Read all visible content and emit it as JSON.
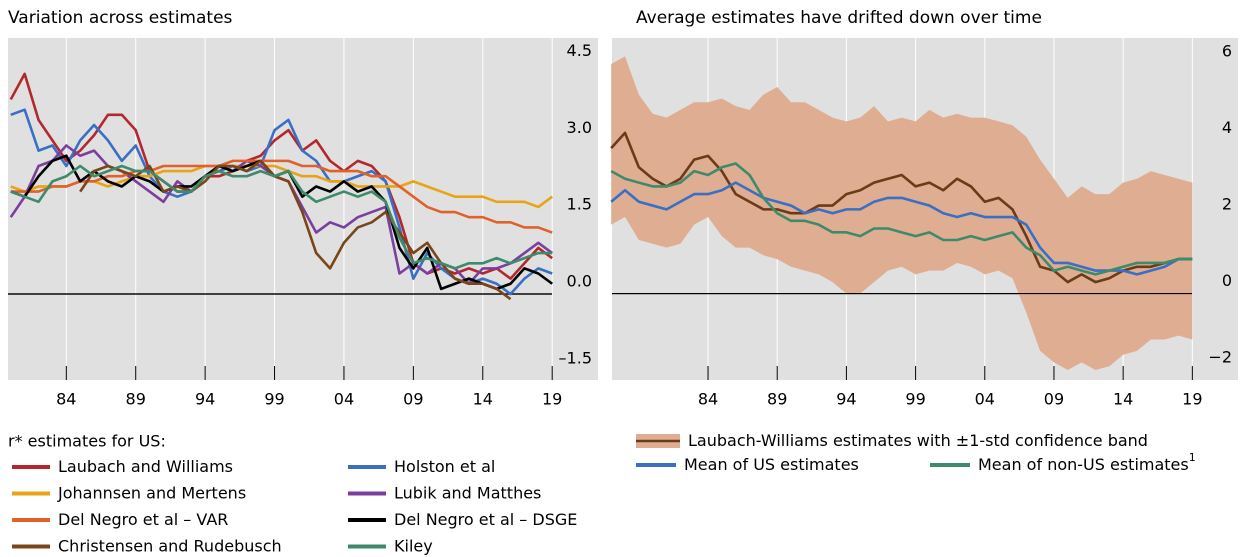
{
  "chart_data": [
    {
      "type": "line",
      "title": "Variation across estimates",
      "legend_title": "r* estimates for US:",
      "x": [
        1980,
        1981,
        1982,
        1983,
        1984,
        1985,
        1986,
        1987,
        1988,
        1989,
        1990,
        1991,
        1992,
        1993,
        1994,
        1995,
        1996,
        1997,
        1998,
        1999,
        2000,
        2001,
        2002,
        2003,
        2004,
        2005,
        2006,
        2007,
        2008,
        2009,
        2010,
        2011,
        2012,
        2013,
        2014,
        2015,
        2016,
        2017,
        2018,
        2019
      ],
      "xlim": [
        1979.8,
        2022.3
      ],
      "ylim": [
        -1.68,
        5.0
      ],
      "xticks": [
        {
          "value": 1984,
          "label": "84"
        },
        {
          "value": 1989,
          "label": "89"
        },
        {
          "value": 1994,
          "label": "94"
        },
        {
          "value": 1999,
          "label": "99"
        },
        {
          "value": 2004,
          "label": "04"
        },
        {
          "value": 2009,
          "label": "09"
        },
        {
          "value": 2014,
          "label": "14"
        },
        {
          "value": 2019,
          "label": "19"
        }
      ],
      "yticks": [
        {
          "value": -1.5,
          "label": "–1.5"
        },
        {
          "value": 0,
          "label": "0.0"
        },
        {
          "value": 1.5,
          "label": "1.5"
        },
        {
          "value": 3,
          "label": "3.0"
        },
        4.5
      ],
      "grid": "x",
      "series": [
        {
          "name": "Laubach and Williams",
          "color": "#b2282e",
          "values": [
            3.8,
            4.3,
            3.4,
            3.0,
            2.6,
            2.8,
            3.1,
            3.5,
            3.5,
            3.2,
            2.4,
            2.2,
            2.0,
            2.0,
            2.3,
            2.3,
            2.4,
            2.6,
            2.7,
            3.0,
            3.2,
            2.8,
            3.0,
            2.6,
            2.4,
            2.6,
            2.5,
            2.2,
            1.5,
            0.6,
            0.4,
            0.5,
            0.4,
            0.5,
            0.4,
            0.5,
            0.3,
            0.6,
            0.9,
            0.7
          ]
        },
        {
          "name": "Holston et al",
          "color": "#3a6fc4",
          "values": [
            3.5,
            3.6,
            2.8,
            2.9,
            2.5,
            3.0,
            3.3,
            3.0,
            2.6,
            2.9,
            2.3,
            2.0,
            1.9,
            2.0,
            2.3,
            2.4,
            2.5,
            2.4,
            2.5,
            3.2,
            3.4,
            2.8,
            2.6,
            2.2,
            2.2,
            2.3,
            2.4,
            2.2,
            1.3,
            0.3,
            0.8,
            0.5,
            0.3,
            0.2,
            0.3,
            0.2,
            0.0,
            0.3,
            0.5,
            0.4
          ]
        },
        {
          "name": "Johannsen and Mertens",
          "color": "#e8a417",
          "values": [
            2.1,
            2.0,
            2.1,
            2.1,
            2.1,
            2.2,
            2.2,
            2.1,
            2.2,
            2.3,
            2.3,
            2.4,
            2.4,
            2.4,
            2.5,
            2.5,
            2.5,
            2.5,
            2.5,
            2.5,
            2.4,
            2.3,
            2.3,
            2.2,
            2.2,
            2.1,
            2.1,
            2.1,
            2.1,
            2.2,
            2.1,
            2.0,
            1.9,
            1.9,
            1.9,
            1.8,
            1.8,
            1.8,
            1.7,
            1.9
          ]
        },
        {
          "name": "Lubik and Matthes",
          "color": "#7b3f9e",
          "values": [
            1.5,
            1.9,
            2.5,
            2.6,
            2.9,
            2.7,
            2.8,
            2.5,
            2.4,
            2.2,
            2.0,
            1.8,
            2.2,
            2.0,
            2.3,
            2.5,
            2.4,
            2.6,
            2.5,
            2.3,
            2.2,
            1.7,
            1.2,
            1.4,
            1.3,
            1.5,
            1.6,
            1.7,
            0.4,
            0.6,
            0.4,
            0.6,
            0.5,
            0.2,
            0.5,
            0.5,
            0.6,
            0.8,
            1.0,
            0.8
          ]
        },
        {
          "name": "Del Negro et al – VAR",
          "color": "#e0622a",
          "values": [
            2.0,
            2.0,
            2.0,
            2.1,
            2.1,
            2.2,
            2.2,
            2.3,
            2.3,
            2.4,
            2.4,
            2.5,
            2.5,
            2.5,
            2.5,
            2.5,
            2.6,
            2.6,
            2.6,
            2.6,
            2.6,
            2.5,
            2.5,
            2.4,
            2.4,
            2.4,
            2.3,
            2.3,
            2.1,
            1.9,
            1.7,
            1.6,
            1.6,
            1.5,
            1.5,
            1.4,
            1.4,
            1.3,
            1.3,
            1.2
          ]
        },
        {
          "name": "Del Negro et al – DSGE",
          "color": "#000000",
          "values": [
            2.0,
            1.9,
            2.3,
            2.6,
            2.7,
            2.2,
            2.4,
            2.2,
            2.1,
            2.3,
            2.2,
            2.0,
            2.1,
            2.1,
            2.3,
            2.5,
            2.4,
            2.5,
            2.6,
            2.3,
            2.4,
            1.9,
            2.1,
            2.0,
            2.2,
            2.0,
            2.1,
            1.8,
            0.9,
            0.5,
            0.9,
            0.1,
            0.2,
            0.3,
            0.2,
            0.1,
            0.2,
            0.5,
            0.4,
            0.2
          ]
        },
        {
          "name": "Christensen and Rudebusch",
          "color": "#7a4619",
          "values": [
            null,
            null,
            null,
            null,
            null,
            2.0,
            2.4,
            2.5,
            2.4,
            2.3,
            2.5,
            2.0,
            2.1,
            2.0,
            2.2,
            2.5,
            2.5,
            2.4,
            2.6,
            2.3,
            2.2,
            1.6,
            0.8,
            0.5,
            1.0,
            1.3,
            1.4,
            1.6,
            1.2,
            0.8,
            1.0,
            0.6,
            0.3,
            0.2,
            0.2,
            0.1,
            -0.1,
            null,
            null,
            null
          ]
        },
        {
          "name": "Kiley",
          "color": "#3e8a6b",
          "values": [
            2.0,
            1.9,
            1.8,
            2.2,
            2.3,
            2.5,
            2.3,
            2.4,
            2.5,
            2.4,
            2.4,
            2.2,
            2.0,
            2.0,
            2.3,
            2.4,
            2.3,
            2.3,
            2.4,
            2.3,
            2.4,
            2.0,
            1.8,
            1.9,
            2.0,
            1.9,
            2.0,
            1.8,
            1.1,
            0.6,
            0.7,
            0.6,
            0.5,
            0.6,
            0.6,
            0.7,
            0.6,
            0.7,
            0.8,
            0.8
          ]
        }
      ]
    },
    {
      "type": "line",
      "title": "Average estimates have drifted down over time",
      "x": [
        1977,
        1978,
        1979,
        1980,
        1981,
        1982,
        1983,
        1984,
        1985,
        1986,
        1987,
        1988,
        1989,
        1990,
        1991,
        1992,
        1993,
        1994,
        1995,
        1996,
        1997,
        1998,
        1999,
        2000,
        2001,
        2002,
        2003,
        2004,
        2005,
        2006,
        2007,
        2008,
        2009,
        2010,
        2011,
        2012,
        2013,
        2014,
        2015,
        2016,
        2017,
        2018,
        2019
      ],
      "xlim": [
        1977.06,
        2022.3
      ],
      "ylim": [
        -2.26,
        6.68
      ],
      "xticks": [
        {
          "value": 1984,
          "label": "84"
        },
        {
          "value": 1989,
          "label": "89"
        },
        {
          "value": 1994,
          "label": "94"
        },
        {
          "value": 1999,
          "label": "99"
        },
        {
          "value": 2004,
          "label": "04"
        },
        {
          "value": 2009,
          "label": "09"
        },
        {
          "value": 2014,
          "label": "14"
        },
        {
          "value": 2019,
          "label": "19"
        }
      ],
      "yticks": [
        {
          "value": -2,
          "label": "−2"
        },
        0,
        2,
        4,
        6
      ],
      "grid": "x",
      "series": [
        {
          "name": "Laubach-Williams estimates with ±1-std confidence band",
          "color": "#6b3a17",
          "band_color": "#dfae92",
          "values": [
            3.8,
            4.2,
            3.3,
            3.0,
            2.8,
            3.0,
            3.5,
            3.6,
            3.2,
            2.6,
            2.4,
            2.2,
            2.2,
            2.1,
            2.1,
            2.3,
            2.3,
            2.6,
            2.7,
            2.9,
            3.0,
            3.1,
            2.8,
            2.9,
            2.7,
            3.0,
            2.8,
            2.4,
            2.5,
            2.2,
            1.5,
            0.7,
            0.6,
            0.3,
            0.5,
            0.3,
            0.4,
            0.6,
            0.7,
            0.7,
            0.8,
            0.9,
            0.9
          ],
          "band_upper": [
            6.0,
            6.2,
            5.2,
            4.7,
            4.6,
            4.8,
            5.0,
            5.0,
            5.1,
            4.9,
            4.8,
            5.2,
            5.4,
            5.0,
            5.0,
            4.8,
            4.6,
            4.5,
            4.6,
            4.9,
            4.5,
            4.6,
            4.5,
            4.8,
            4.6,
            4.7,
            4.6,
            4.6,
            4.5,
            4.4,
            4.1,
            3.5,
            3.0,
            2.5,
            2.8,
            2.6,
            2.6,
            2.9,
            3.0,
            3.2,
            3.1,
            3.0,
            2.9
          ],
          "band_lower": [
            1.8,
            2.0,
            1.4,
            1.3,
            1.2,
            1.3,
            1.8,
            2.0,
            1.5,
            1.2,
            1.2,
            1.0,
            0.9,
            0.7,
            0.6,
            0.5,
            0.3,
            0.0,
            0.0,
            0.3,
            0.6,
            0.7,
            0.5,
            0.6,
            0.6,
            0.8,
            0.7,
            0.5,
            0.6,
            0.4,
            -0.5,
            -1.5,
            -1.8,
            -2.0,
            -1.8,
            -2.0,
            -1.9,
            -1.6,
            -1.5,
            -1.2,
            -1.2,
            -1.1,
            -1.2
          ]
        },
        {
          "name": "Mean of US estimates",
          "color": "#3a6fc4",
          "values": [
            2.4,
            2.7,
            2.4,
            2.3,
            2.2,
            2.4,
            2.6,
            2.6,
            2.7,
            2.9,
            2.7,
            2.5,
            2.4,
            2.3,
            2.1,
            2.2,
            2.1,
            2.2,
            2.2,
            2.4,
            2.5,
            2.5,
            2.4,
            2.3,
            2.1,
            2.0,
            2.1,
            2.0,
            2.0,
            2.0,
            1.8,
            1.2,
            0.8,
            0.8,
            0.7,
            0.6,
            0.6,
            0.6,
            0.5,
            0.6,
            0.7,
            0.9,
            0.9
          ]
        },
        {
          "name": "Mean of non-US estimates",
          "name_note": "1",
          "color": "#3e8a6b",
          "values": [
            3.2,
            3.0,
            2.9,
            2.8,
            2.8,
            2.9,
            3.2,
            3.1,
            3.3,
            3.4,
            3.1,
            2.5,
            2.1,
            1.9,
            1.9,
            1.8,
            1.6,
            1.6,
            1.5,
            1.7,
            1.7,
            1.6,
            1.5,
            1.6,
            1.4,
            1.4,
            1.5,
            1.4,
            1.5,
            1.6,
            1.2,
            1.0,
            0.6,
            0.7,
            0.6,
            0.5,
            0.6,
            0.7,
            0.8,
            0.8,
            0.8,
            0.9,
            0.9
          ]
        }
      ]
    }
  ]
}
